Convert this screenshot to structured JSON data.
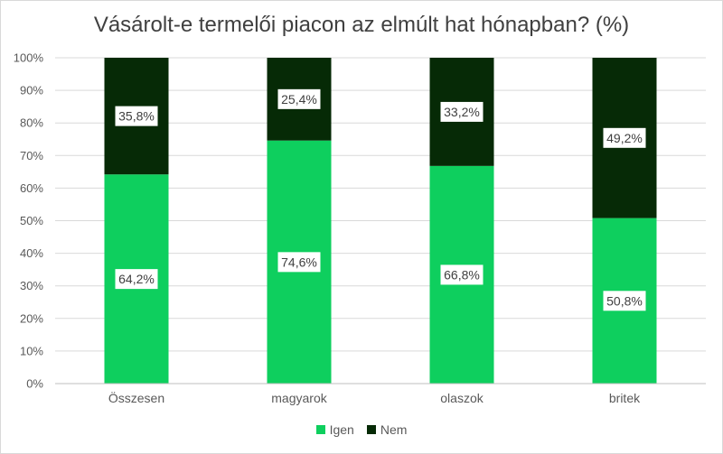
{
  "chart_data": {
    "type": "bar",
    "stacked": true,
    "percent_stacked": true,
    "title": "Vásárolt-e termelői piacon az elmúlt hat hónapban? (%)",
    "categories": [
      "Összesen",
      "magyarok",
      "olaszok",
      "britek"
    ],
    "series": [
      {
        "name": "Igen",
        "values": [
          64.2,
          74.6,
          66.8,
          50.8
        ],
        "labels": [
          "64,2%",
          "74,6%",
          "66,8%",
          "50,8%"
        ],
        "color": "#0ecf5e"
      },
      {
        "name": "Nem",
        "values": [
          35.8,
          25.4,
          33.2,
          49.2
        ],
        "labels": [
          "35,8%",
          "25,4%",
          "33,2%",
          "49,2%"
        ],
        "color": "#062a06"
      }
    ],
    "yticks": [
      "0%",
      "10%",
      "20%",
      "30%",
      "40%",
      "50%",
      "60%",
      "70%",
      "80%",
      "90%",
      "100%"
    ],
    "ylim": [
      0,
      100
    ],
    "grid": true,
    "legend": "bottom"
  }
}
